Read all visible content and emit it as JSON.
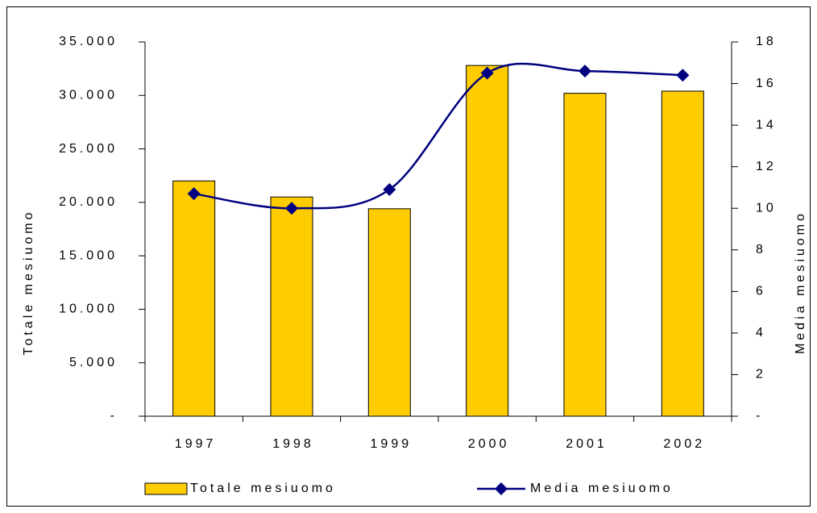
{
  "chart_data": {
    "type": "bar-line",
    "categories": [
      "1997",
      "1998",
      "1999",
      "2000",
      "2001",
      "2002"
    ],
    "series": [
      {
        "name": "Totale mesiuomo",
        "type": "bar",
        "color": "#ffcc00",
        "values": [
          22000,
          20500,
          19400,
          32800,
          30200,
          30400
        ]
      },
      {
        "name": "Media mesiuomo",
        "type": "line",
        "axis": "y2",
        "color": "#000080",
        "values": [
          10.7,
          10.0,
          10.9,
          16.5,
          16.6,
          16.4
        ]
      }
    ],
    "ylabel": "Totale mesiuomo",
    "y2label": "Media mesiuomo",
    "ylim": [
      0,
      35000
    ],
    "yticks": [
      {
        "value": 0,
        "label": "-"
      },
      {
        "value": 5000,
        "label": "5.000"
      },
      {
        "value": 10000,
        "label": "10.000"
      },
      {
        "value": 15000,
        "label": "15.000"
      },
      {
        "value": 20000,
        "label": "20.000"
      },
      {
        "value": 25000,
        "label": "25.000"
      },
      {
        "value": 30000,
        "label": "30.000"
      },
      {
        "value": 35000,
        "label": "35.000"
      }
    ],
    "y2lim": [
      0,
      18
    ],
    "y2ticks": [
      {
        "value": 0,
        "label": "-"
      },
      2,
      4,
      6,
      8,
      10,
      12,
      14,
      16,
      18
    ],
    "legend": "bottom"
  }
}
